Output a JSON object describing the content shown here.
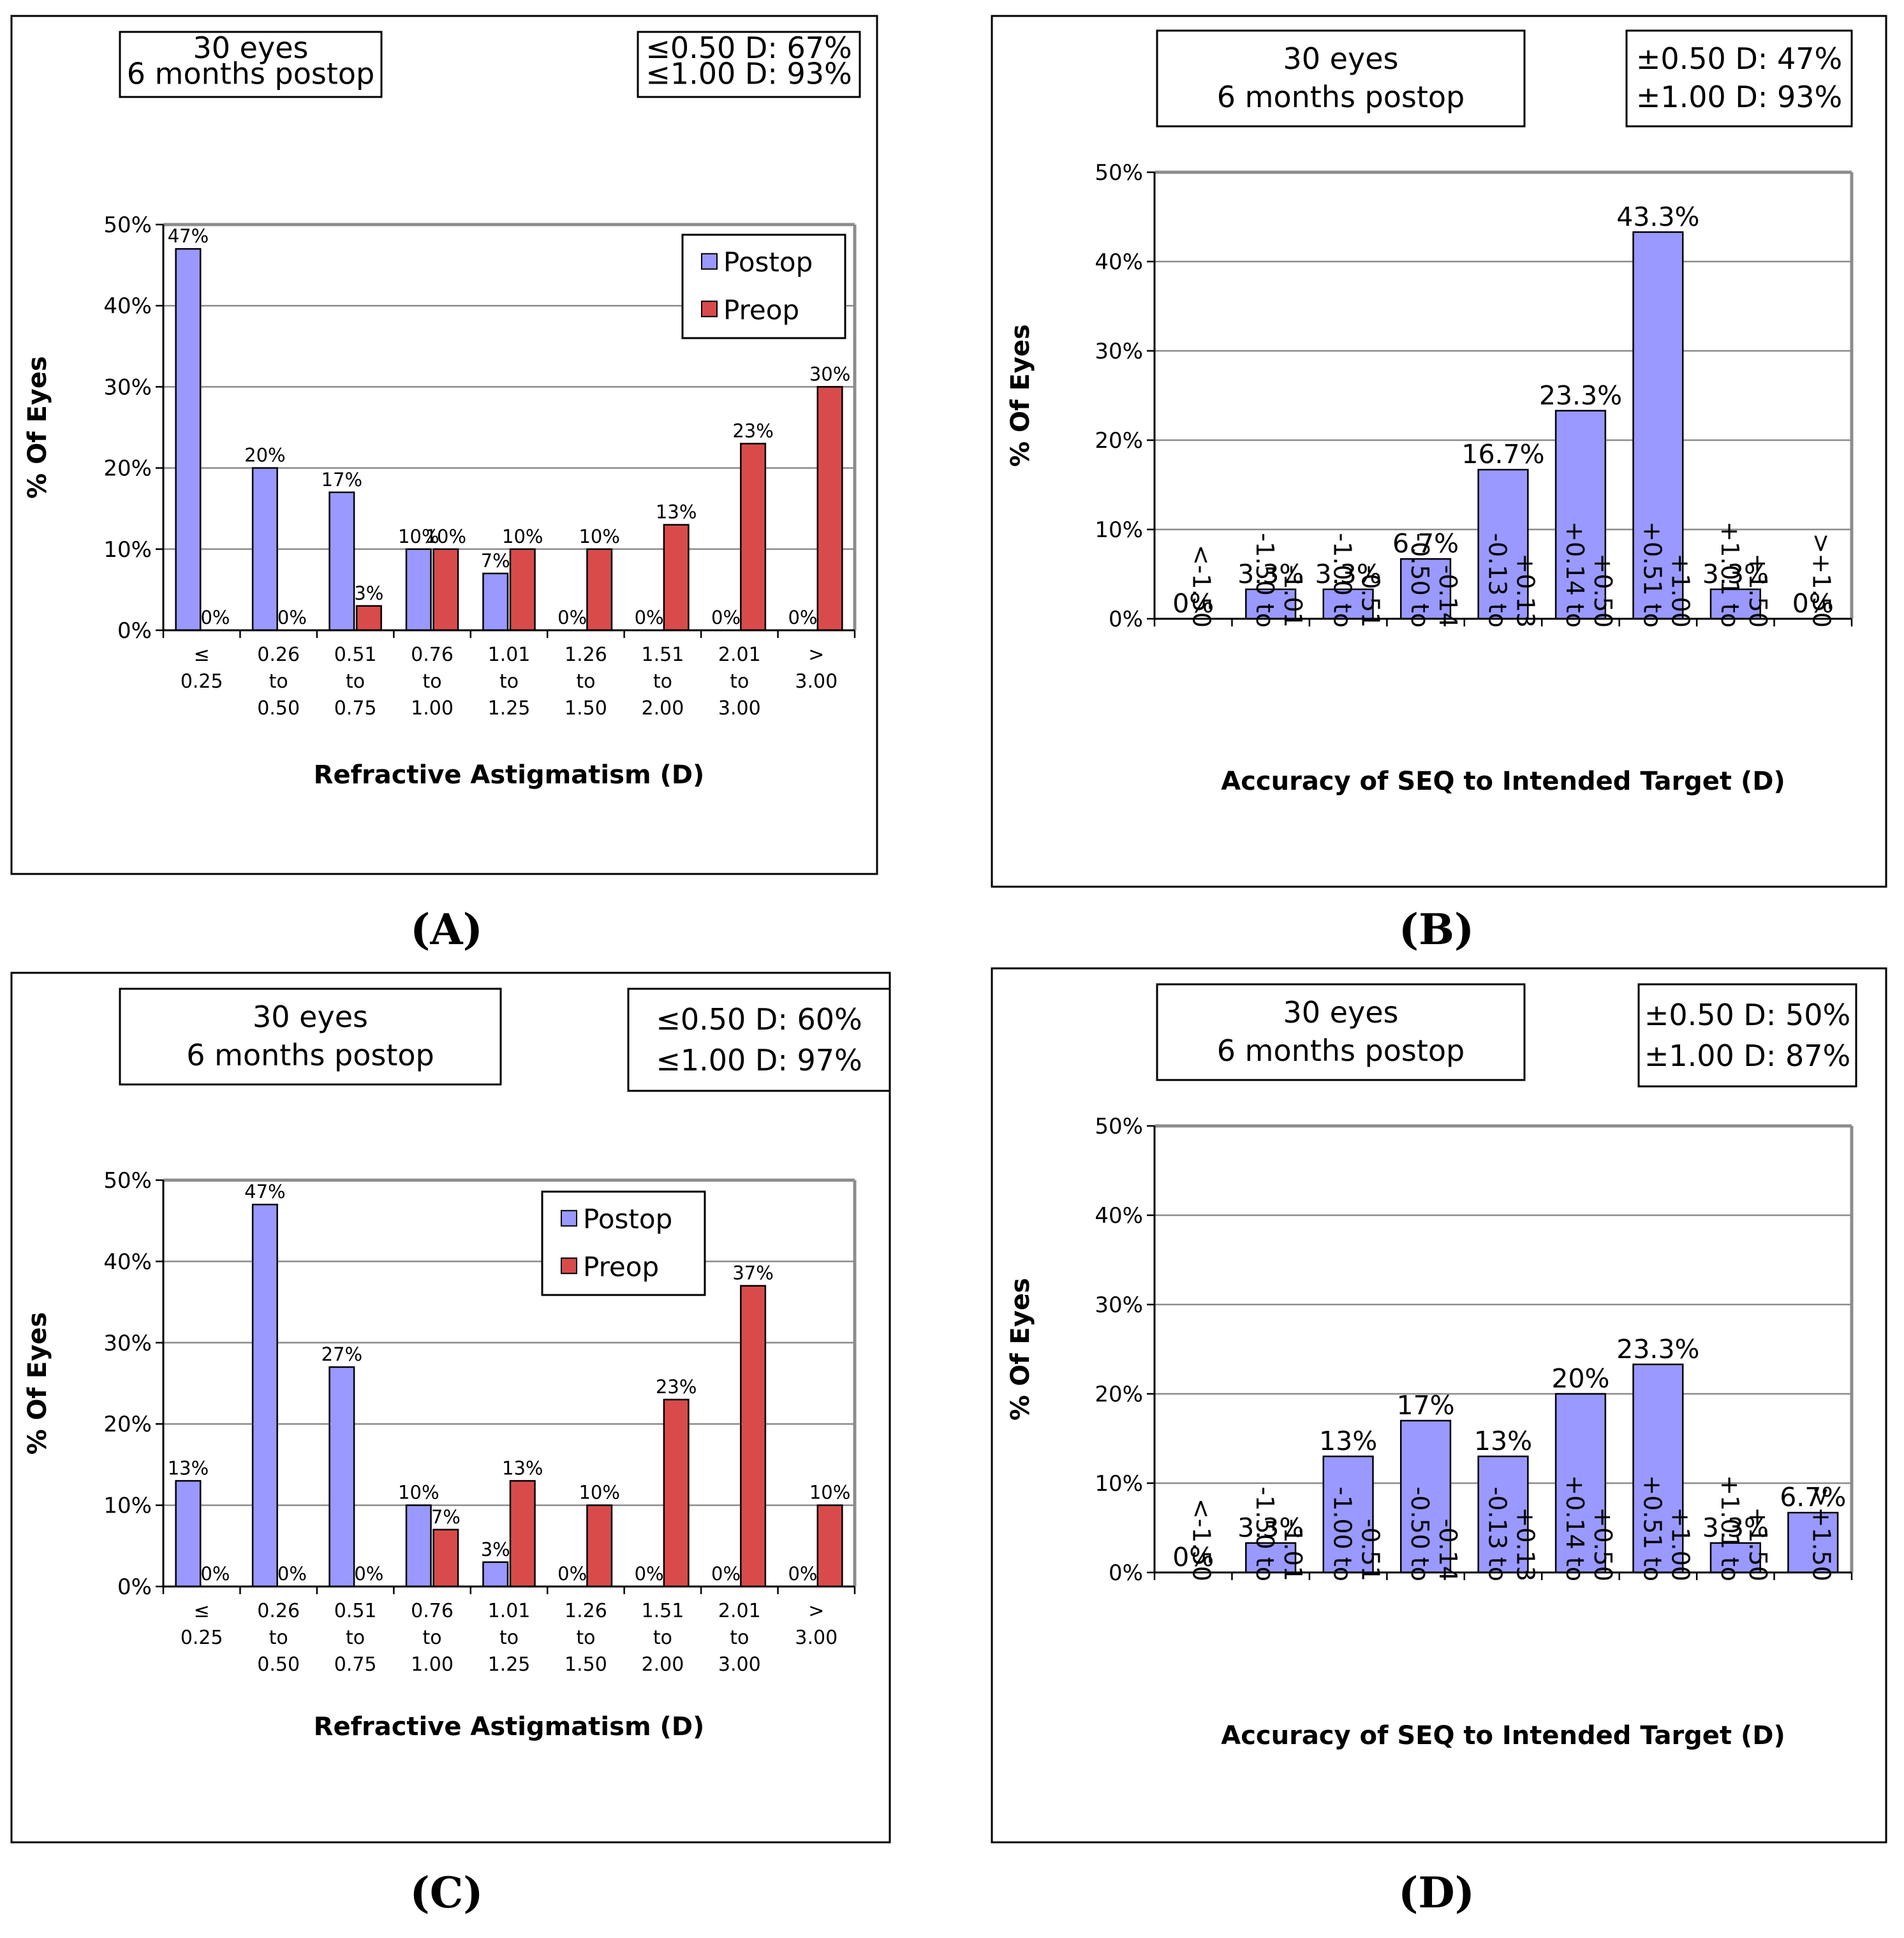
{
  "colors": {
    "postop": "#9999ff",
    "preop": "#d94b4b",
    "grid": "#8c8c8c",
    "frame": "#000000"
  },
  "panels": [
    {
      "letter": "(A)",
      "info_box": [
        "30 eyes",
        "6 months postop"
      ],
      "stats_box": [
        "≤0.50 D: 67%",
        "≤1.00 D: 93%"
      ],
      "chart_data": {
        "type": "bar",
        "categories": [
          [
            "≤",
            "0.25"
          ],
          [
            "0.26",
            "to",
            "0.50"
          ],
          [
            "0.51",
            "to",
            "0.75"
          ],
          [
            "0.76",
            "to",
            "1.00"
          ],
          [
            "1.01",
            "to",
            "1.25"
          ],
          [
            "1.26",
            "to",
            "1.50"
          ],
          [
            "1.51",
            "to",
            "2.00"
          ],
          [
            "2.01",
            "to",
            "3.00"
          ],
          [
            ">",
            "3.00"
          ]
        ],
        "series": [
          {
            "name": "Postop",
            "color": "#9999ff",
            "values": [
              47,
              20,
              17,
              10,
              7,
              0,
              0,
              0,
              0
            ],
            "labels": [
              "47%",
              "20%",
              "17%",
              "10%",
              "7%",
              "0%",
              "0%",
              "0%",
              "0%"
            ]
          },
          {
            "name": "Preop",
            "color": "#d94b4b",
            "values": [
              0,
              0,
              3,
              10,
              10,
              10,
              13,
              23,
              30
            ],
            "labels": [
              "0%",
              "0%",
              "3%",
              "10%",
              "10%",
              "10%",
              "13%",
              "23%",
              "30%"
            ]
          }
        ],
        "xlabel": "Refractive Astigmatism (D)",
        "ylabel": "% Of Eyes",
        "ylim": [
          0,
          50
        ],
        "yticks": [
          "0%",
          "10%",
          "20%",
          "30%",
          "40%",
          "50%"
        ],
        "legend": "top-right",
        "grid": true
      }
    },
    {
      "letter": "(B)",
      "info_box": [
        "30 eyes",
        "6 months postop"
      ],
      "stats_box": [
        "±0.50 D: 47%",
        "±1.00 D: 93%"
      ],
      "chart_data": {
        "type": "bar",
        "categories": [
          "<-1.50",
          "-1.50 to -1.01",
          "-1.00 to -0.51",
          "-0.50 to -0.14",
          "-0.13 to +0.13",
          "+0.14 to +0.50",
          "+0.51 to +1.00",
          "+1.01 to +1.50",
          ">+1.50"
        ],
        "category_lines": [
          [
            "<-1.50"
          ],
          [
            "-1.50 to",
            "-1.01"
          ],
          [
            "-1.00 to",
            "-0.51"
          ],
          [
            "-0.50 to",
            "-0.14"
          ],
          [
            "-0.13 to",
            "+0.13"
          ],
          [
            "+0.14 to",
            "+0.50"
          ],
          [
            "+0.51 to",
            "+1.00"
          ],
          [
            "+1.01 to",
            "+1.50"
          ],
          [
            ">+1.50"
          ]
        ],
        "series": [
          {
            "name": "Postop",
            "color": "#9999ff",
            "values": [
              0,
              3.3,
              3.3,
              6.7,
              16.7,
              23.3,
              43.3,
              3.3,
              0
            ],
            "labels": [
              "0%",
              "3.3%",
              "3.3%",
              "6.7%",
              "16.7%",
              "23.3%",
              "43.3%",
              "3.3%",
              "0%"
            ]
          }
        ],
        "xlabel": "Accuracy of SEQ to Intended Target (D)",
        "ylabel": "% Of Eyes",
        "ylim": [
          0,
          50
        ],
        "yticks": [
          "0%",
          "10%",
          "20%",
          "30%",
          "40%",
          "50%"
        ],
        "grid": true
      }
    },
    {
      "letter": "(C)",
      "info_box": [
        "30 eyes",
        "6 months postop"
      ],
      "stats_box": [
        "≤0.50 D: 60%",
        "≤1.00 D: 97%"
      ],
      "chart_data": {
        "type": "bar",
        "categories": [
          [
            "≤",
            "0.25"
          ],
          [
            "0.26",
            "to",
            "0.50"
          ],
          [
            "0.51",
            "to",
            "0.75"
          ],
          [
            "0.76",
            "to",
            "1.00"
          ],
          [
            "1.01",
            "to",
            "1.25"
          ],
          [
            "1.26",
            "to",
            "1.50"
          ],
          [
            "1.51",
            "to",
            "2.00"
          ],
          [
            "2.01",
            "to",
            "3.00"
          ],
          [
            ">",
            "3.00"
          ]
        ],
        "series": [
          {
            "name": "Postop",
            "color": "#9999ff",
            "values": [
              13,
              47,
              27,
              10,
              3,
              0,
              0,
              0,
              0
            ],
            "labels": [
              "13%",
              "47%",
              "27%",
              "10%",
              "3%",
              "0%",
              "0%",
              "0%",
              "0%"
            ]
          },
          {
            "name": "Preop",
            "color": "#d94b4b",
            "values": [
              0,
              0,
              0,
              7,
              13,
              10,
              23,
              37,
              10
            ],
            "labels": [
              "0%",
              "0%",
              "0%",
              "7%",
              "13%",
              "10%",
              "23%",
              "37%",
              "10%"
            ]
          }
        ],
        "xlabel": "Refractive Astigmatism (D)",
        "ylabel": "% Of Eyes",
        "ylim": [
          0,
          50
        ],
        "yticks": [
          "0%",
          "10%",
          "20%",
          "30%",
          "40%",
          "50%"
        ],
        "legend": "top-right",
        "grid": true
      }
    },
    {
      "letter": "(D)",
      "info_box": [
        "30 eyes",
        "6 months postop"
      ],
      "stats_box": [
        "±0.50 D: 50%",
        "±1.00 D: 87%"
      ],
      "chart_data": {
        "type": "bar",
        "categories": [
          "<-1.50",
          "-1.50 to -1.01",
          "-1.00 to -0.51",
          "-0.50 to -0.14",
          "-0.13 to +0.13",
          "+0.14 to +0.50",
          "+0.51 to +1.00",
          "+1.01 to +1.50",
          ">+1.50"
        ],
        "category_lines": [
          [
            "<-1.50"
          ],
          [
            "-1.50 to",
            "-1.01"
          ],
          [
            "-1.00 to",
            "-0.51"
          ],
          [
            "-0.50 to",
            "-0.14"
          ],
          [
            "-0.13 to",
            "+0.13"
          ],
          [
            "+0.14 to",
            "+0.50"
          ],
          [
            "+0.51 to",
            "+1.00"
          ],
          [
            "+1.01 to",
            "+1.50"
          ],
          [
            ">+1.50"
          ]
        ],
        "series": [
          {
            "name": "Postop",
            "color": "#9999ff",
            "values": [
              0,
              3.3,
              13,
              17,
              13,
              20,
              23.3,
              3.3,
              6.7
            ],
            "labels": [
              "0%",
              "3.3%",
              "13%",
              "17%",
              "13%",
              "20%",
              "23.3%",
              "3.3%",
              "6.7%"
            ]
          }
        ],
        "xlabel": "Accuracy of SEQ to Intended Target (D)",
        "ylabel": "% Of Eyes",
        "ylim": [
          0,
          50
        ],
        "yticks": [
          "0%",
          "10%",
          "20%",
          "30%",
          "40%",
          "50%"
        ],
        "grid": true
      }
    }
  ]
}
